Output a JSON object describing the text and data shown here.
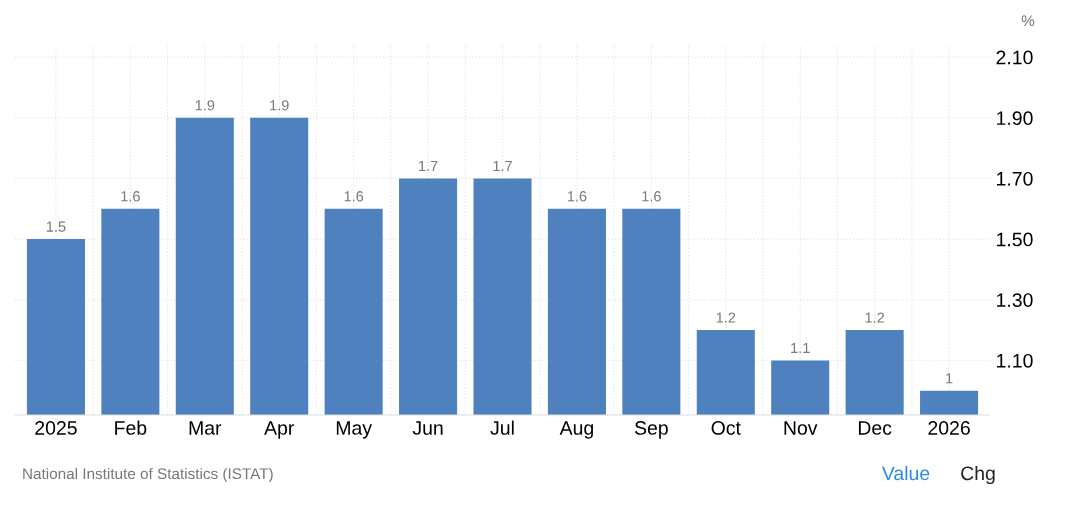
{
  "chart_data": {
    "type": "bar",
    "categories": [
      "2025",
      "Feb",
      "Mar",
      "Apr",
      "May",
      "Jun",
      "Jul",
      "Aug",
      "Sep",
      "Oct",
      "Nov",
      "Dec",
      "2026"
    ],
    "values": [
      1.5,
      1.6,
      1.9,
      1.9,
      1.6,
      1.7,
      1.7,
      1.6,
      1.6,
      1.2,
      1.1,
      1.2,
      1
    ],
    "color": "#4e81bd",
    "ylabel": "%",
    "ylim": [
      0.92,
      2.14
    ],
    "yticks": [
      {
        "value": 1.1,
        "label": "1.10"
      },
      {
        "value": 1.3,
        "label": "1.30"
      },
      {
        "value": 1.5,
        "label": "1.50"
      },
      {
        "value": 1.7,
        "label": "1.70"
      },
      {
        "value": 1.9,
        "label": "1.90"
      },
      {
        "value": 2.1,
        "label": "2.10"
      }
    ],
    "grid": true,
    "data_labels": true,
    "annotations": [
      "National Institute of Statistics (ISTAT)",
      "Value",
      "Chg"
    ]
  }
}
